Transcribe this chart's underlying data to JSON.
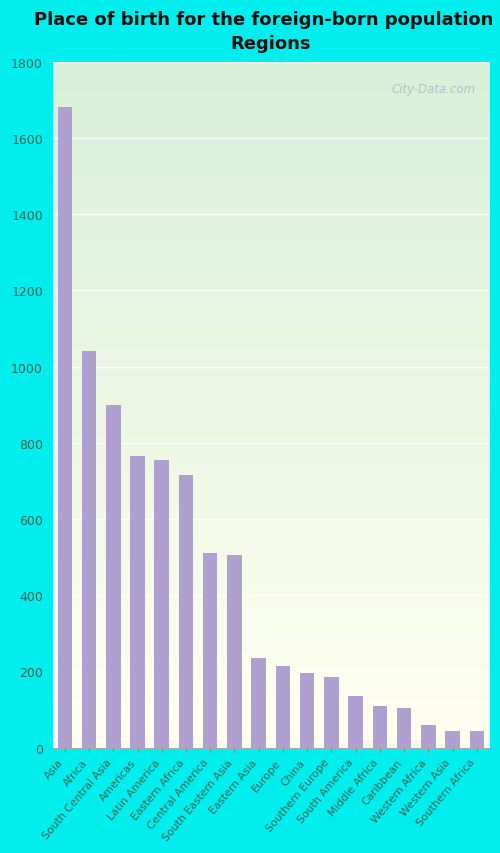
{
  "title": "Place of birth for the foreign-born population -\nRegions",
  "categories": [
    "Asia",
    "Africa",
    "South Central Asia",
    "Americas",
    "Latin America",
    "Eastern Africa",
    "Central America",
    "South Eastern Asia",
    "Eastern Asia",
    "Europe",
    "China",
    "Southern Europe",
    "South America",
    "Middle Africa",
    "Caribbean",
    "Western Africa",
    "Western Asia",
    "Southern Africa"
  ],
  "values": [
    1680,
    1040,
    900,
    765,
    755,
    715,
    510,
    505,
    235,
    215,
    195,
    185,
    135,
    110,
    105,
    60,
    45,
    45
  ],
  "bar_color": "#b0a0d0",
  "background_color": "#00eeee",
  "ylim": [
    0,
    1800
  ],
  "yticks": [
    0,
    200,
    400,
    600,
    800,
    1000,
    1200,
    1400,
    1600,
    1800
  ],
  "title_fontsize": 13,
  "tick_color": "#336655",
  "watermark": "City-Data.com",
  "grad_top": "#d8f0d8",
  "grad_bottom": "#fffff0"
}
